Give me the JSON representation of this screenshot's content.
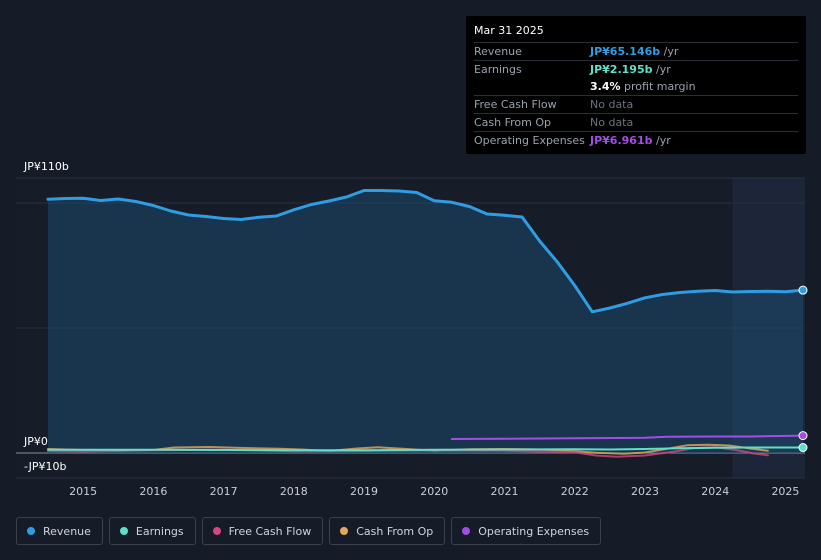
{
  "tooltip": {
    "date": "Mar 31 2025",
    "rows": [
      {
        "label": "Revenue",
        "value": "JP¥65.146b",
        "unit": "/yr",
        "color": "#2f9de4"
      },
      {
        "label": "Earnings",
        "value": "JP¥2.195b",
        "unit": "/yr",
        "color": "#5ee0c8"
      },
      {
        "label": "",
        "value": "3.4%",
        "unit": "profit margin",
        "color": "#ffffff"
      },
      {
        "label": "Free Cash Flow",
        "value": "No data",
        "unit": "",
        "color": "#6b7280"
      },
      {
        "label": "Cash From Op",
        "value": "No data",
        "unit": "",
        "color": "#6b7280"
      },
      {
        "label": "Operating Expenses",
        "value": "JP¥6.961b",
        "unit": "/yr",
        "color": "#a24ee6"
      }
    ]
  },
  "legend": [
    {
      "label": "Revenue",
      "color": "#2f9de4"
    },
    {
      "label": "Earnings",
      "color": "#5ee0c8"
    },
    {
      "label": "Free Cash Flow",
      "color": "#d6457f"
    },
    {
      "label": "Cash From Op",
      "color": "#e6a75a"
    },
    {
      "label": "Operating Expenses",
      "color": "#a24ee6"
    }
  ],
  "chart_data": {
    "type": "area",
    "y_tick_labels": [
      "JP¥110b",
      "JP¥0",
      "-JP¥10b"
    ],
    "ylim": [
      -10,
      110
    ],
    "xlim": [
      2014.5,
      2025.25
    ],
    "x_tick_labels": [
      "2015",
      "2016",
      "2017",
      "2018",
      "2019",
      "2020",
      "2021",
      "2022",
      "2023",
      "2024",
      "2025"
    ],
    "x_ticks": [
      2015,
      2016,
      2017,
      2018,
      2019,
      2020,
      2021,
      2022,
      2023,
      2024,
      2025
    ],
    "highlight_from": 2024.25,
    "grid": true,
    "series": [
      {
        "name": "Revenue",
        "color": "#2f9de4",
        "fill": true,
        "x": [
          2014.5,
          2014.75,
          2015.0,
          2015.25,
          2015.5,
          2015.75,
          2016.0,
          2016.25,
          2016.5,
          2016.75,
          2017.0,
          2017.25,
          2017.5,
          2017.75,
          2018.0,
          2018.25,
          2018.5,
          2018.75,
          2019.0,
          2019.25,
          2019.5,
          2019.75,
          2020.0,
          2020.25,
          2020.5,
          2020.75,
          2021.0,
          2021.25,
          2021.5,
          2021.75,
          2022.0,
          2022.25,
          2022.5,
          2022.75,
          2023.0,
          2023.25,
          2023.5,
          2023.75,
          2024.0,
          2024.25,
          2024.5,
          2024.75,
          2025.0,
          2025.25
        ],
        "y": [
          101.5,
          101.8,
          101.9,
          101.0,
          101.6,
          100.6,
          99.0,
          96.8,
          95.2,
          94.6,
          93.8,
          93.4,
          94.3,
          94.8,
          97.3,
          99.4,
          100.8,
          102.4,
          105.0,
          105.0,
          104.8,
          104.2,
          100.9,
          100.3,
          98.6,
          95.6,
          95.1,
          94.4,
          84.8,
          76.5,
          67.0,
          56.5,
          58.0,
          59.9,
          62.1,
          63.4,
          64.2,
          64.7,
          65.0,
          64.4,
          64.6,
          64.7,
          64.5,
          65.146
        ]
      },
      {
        "name": "Earnings",
        "color": "#5ee0c8",
        "fill": false,
        "x": [
          2014.5,
          2015.0,
          2016.0,
          2017.0,
          2018.0,
          2019.0,
          2020.0,
          2021.0,
          2022.0,
          2022.5,
          2023.0,
          2023.5,
          2024.0,
          2024.5,
          2025.25
        ],
        "y": [
          1.3,
          1.3,
          1.3,
          1.2,
          1.1,
          1.1,
          1.3,
          1.4,
          1.5,
          1.4,
          1.6,
          1.9,
          2.1,
          2.2,
          2.195
        ]
      },
      {
        "name": "Free Cash Flow",
        "color": "#d6457f",
        "fill": false,
        "x": [
          2014.5,
          2015.0,
          2016.0,
          2017.0,
          2018.0,
          2019.0,
          2020.0,
          2021.0,
          2022.0,
          2022.3,
          2022.6,
          2023.0,
          2023.4,
          2023.7,
          2024.0,
          2024.3,
          2024.55,
          2024.75
        ],
        "y": [
          0.8,
          0.6,
          1.1,
          1.3,
          0.7,
          0.8,
          1.0,
          0.9,
          0.3,
          -1.0,
          -1.5,
          -1.0,
          0.5,
          2.0,
          2.3,
          1.2,
          -0.2,
          -0.9
        ]
      },
      {
        "name": "Cash From Op",
        "color": "#e6a75a",
        "fill": false,
        "x": [
          2014.5,
          2015.0,
          2015.5,
          2016.0,
          2016.3,
          2016.8,
          2017.3,
          2017.8,
          2018.1,
          2018.5,
          2018.9,
          2019.2,
          2019.6,
          2020.0,
          2020.5,
          2021.0,
          2021.5,
          2022.0,
          2022.3,
          2022.7,
          2023.0,
          2023.3,
          2023.6,
          2023.9,
          2024.2,
          2024.5,
          2024.75
        ],
        "y": [
          1.6,
          1.2,
          1.0,
          1.2,
          2.2,
          2.4,
          2.0,
          1.7,
          1.4,
          0.8,
          1.8,
          2.3,
          1.6,
          0.9,
          1.5,
          1.6,
          1.4,
          0.7,
          0.1,
          -0.3,
          0.2,
          1.6,
          3.1,
          3.3,
          3.0,
          1.8,
          0.9
        ]
      },
      {
        "name": "Operating Expenses",
        "color": "#a24ee6",
        "fill": false,
        "x": [
          2020.25,
          2021.0,
          2022.0,
          2023.0,
          2023.3,
          2024.0,
          2024.5,
          2025.25
        ],
        "y": [
          5.6,
          5.7,
          5.9,
          6.1,
          6.5,
          6.6,
          6.6,
          6.961
        ]
      }
    ]
  }
}
